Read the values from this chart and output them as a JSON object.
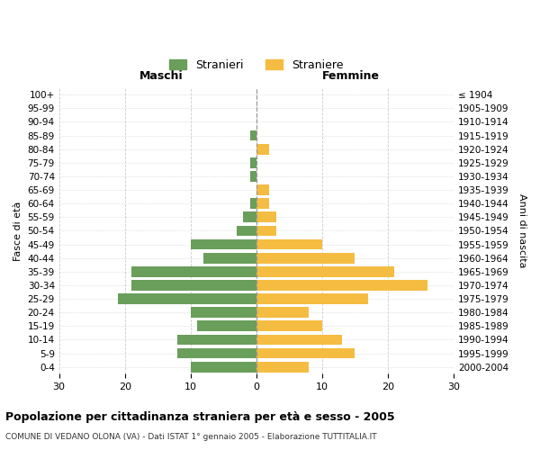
{
  "age_groups": [
    "0-4",
    "5-9",
    "10-14",
    "15-19",
    "20-24",
    "25-29",
    "30-34",
    "35-39",
    "40-44",
    "45-49",
    "50-54",
    "55-59",
    "60-64",
    "65-69",
    "70-74",
    "75-79",
    "80-84",
    "85-89",
    "90-94",
    "95-99",
    "100+"
  ],
  "birth_years": [
    "2000-2004",
    "1995-1999",
    "1990-1994",
    "1985-1989",
    "1980-1984",
    "1975-1979",
    "1970-1974",
    "1965-1969",
    "1960-1964",
    "1955-1959",
    "1950-1954",
    "1945-1949",
    "1940-1944",
    "1935-1939",
    "1930-1934",
    "1925-1929",
    "1920-1924",
    "1915-1919",
    "1910-1914",
    "1905-1909",
    "≤ 1904"
  ],
  "maschi": [
    10,
    12,
    12,
    9,
    10,
    21,
    19,
    19,
    8,
    10,
    3,
    2,
    1,
    0,
    1,
    1,
    0,
    1,
    0,
    0,
    0
  ],
  "femmine": [
    8,
    15,
    13,
    10,
    8,
    17,
    26,
    21,
    15,
    10,
    3,
    3,
    2,
    2,
    0,
    0,
    2,
    0,
    0,
    0,
    0
  ],
  "color_maschi": "#6a9e5b",
  "color_femmine": "#f5bc42",
  "xlim": 30,
  "title": "Popolazione per cittadinanza straniera per età e sesso - 2005",
  "subtitle": "COMUNE DI VEDANO OLONA (VA) - Dati ISTAT 1° gennaio 2005 - Elaborazione TUTTITALIA.IT",
  "ylabel_left": "Fasce di età",
  "ylabel_right": "Anni di nascita",
  "xlabel_maschi": "Maschi",
  "xlabel_femmine": "Femmine",
  "legend_maschi": "Stranieri",
  "legend_femmine": "Straniere",
  "bg_color": "#ffffff",
  "grid_color": "#cccccc",
  "xticks": [
    -30,
    -20,
    -10,
    0,
    10,
    20,
    30
  ],
  "xtick_labels": [
    "30",
    "20",
    "10",
    "0",
    "10",
    "20",
    "30"
  ]
}
